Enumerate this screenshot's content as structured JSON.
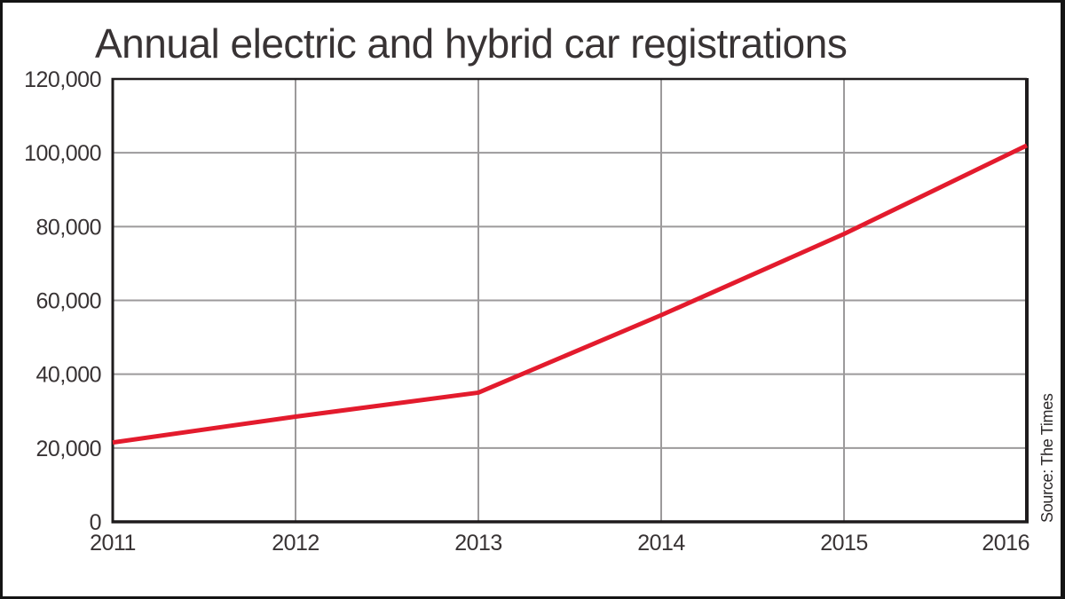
{
  "title": "Annual electric and hybrid car registrations",
  "colors": {
    "line": "#e31b2d",
    "grid": "#9c9a9b",
    "axis": "#1f1c1d",
    "text": "#383334",
    "frame": "#141414",
    "background": "#ffffff"
  },
  "chart_data": {
    "type": "line",
    "title": "Annual electric and hybrid car registrations",
    "x": [
      2011,
      2012,
      2013,
      2014,
      2015,
      2016
    ],
    "xtick_labels": [
      "2011",
      "2012",
      "2013",
      "2014",
      "2015",
      "2016"
    ],
    "series": [
      {
        "name": "Annual electric and hybrid car registrations",
        "color": "#e31b2d",
        "values": [
          21500,
          28500,
          35000,
          56000,
          78000,
          102000
        ]
      }
    ],
    "xlabel": "",
    "ylabel": "",
    "ylim": [
      0,
      120000
    ],
    "yticks": [
      0,
      20000,
      40000,
      60000,
      80000,
      100000,
      120000
    ],
    "ytick_labels": [
      "0",
      "20,000",
      "40,000",
      "60,000",
      "80,000",
      "100,000",
      "120,000"
    ],
    "grid": true,
    "legend_position": "none",
    "source": "Source: The Times"
  }
}
